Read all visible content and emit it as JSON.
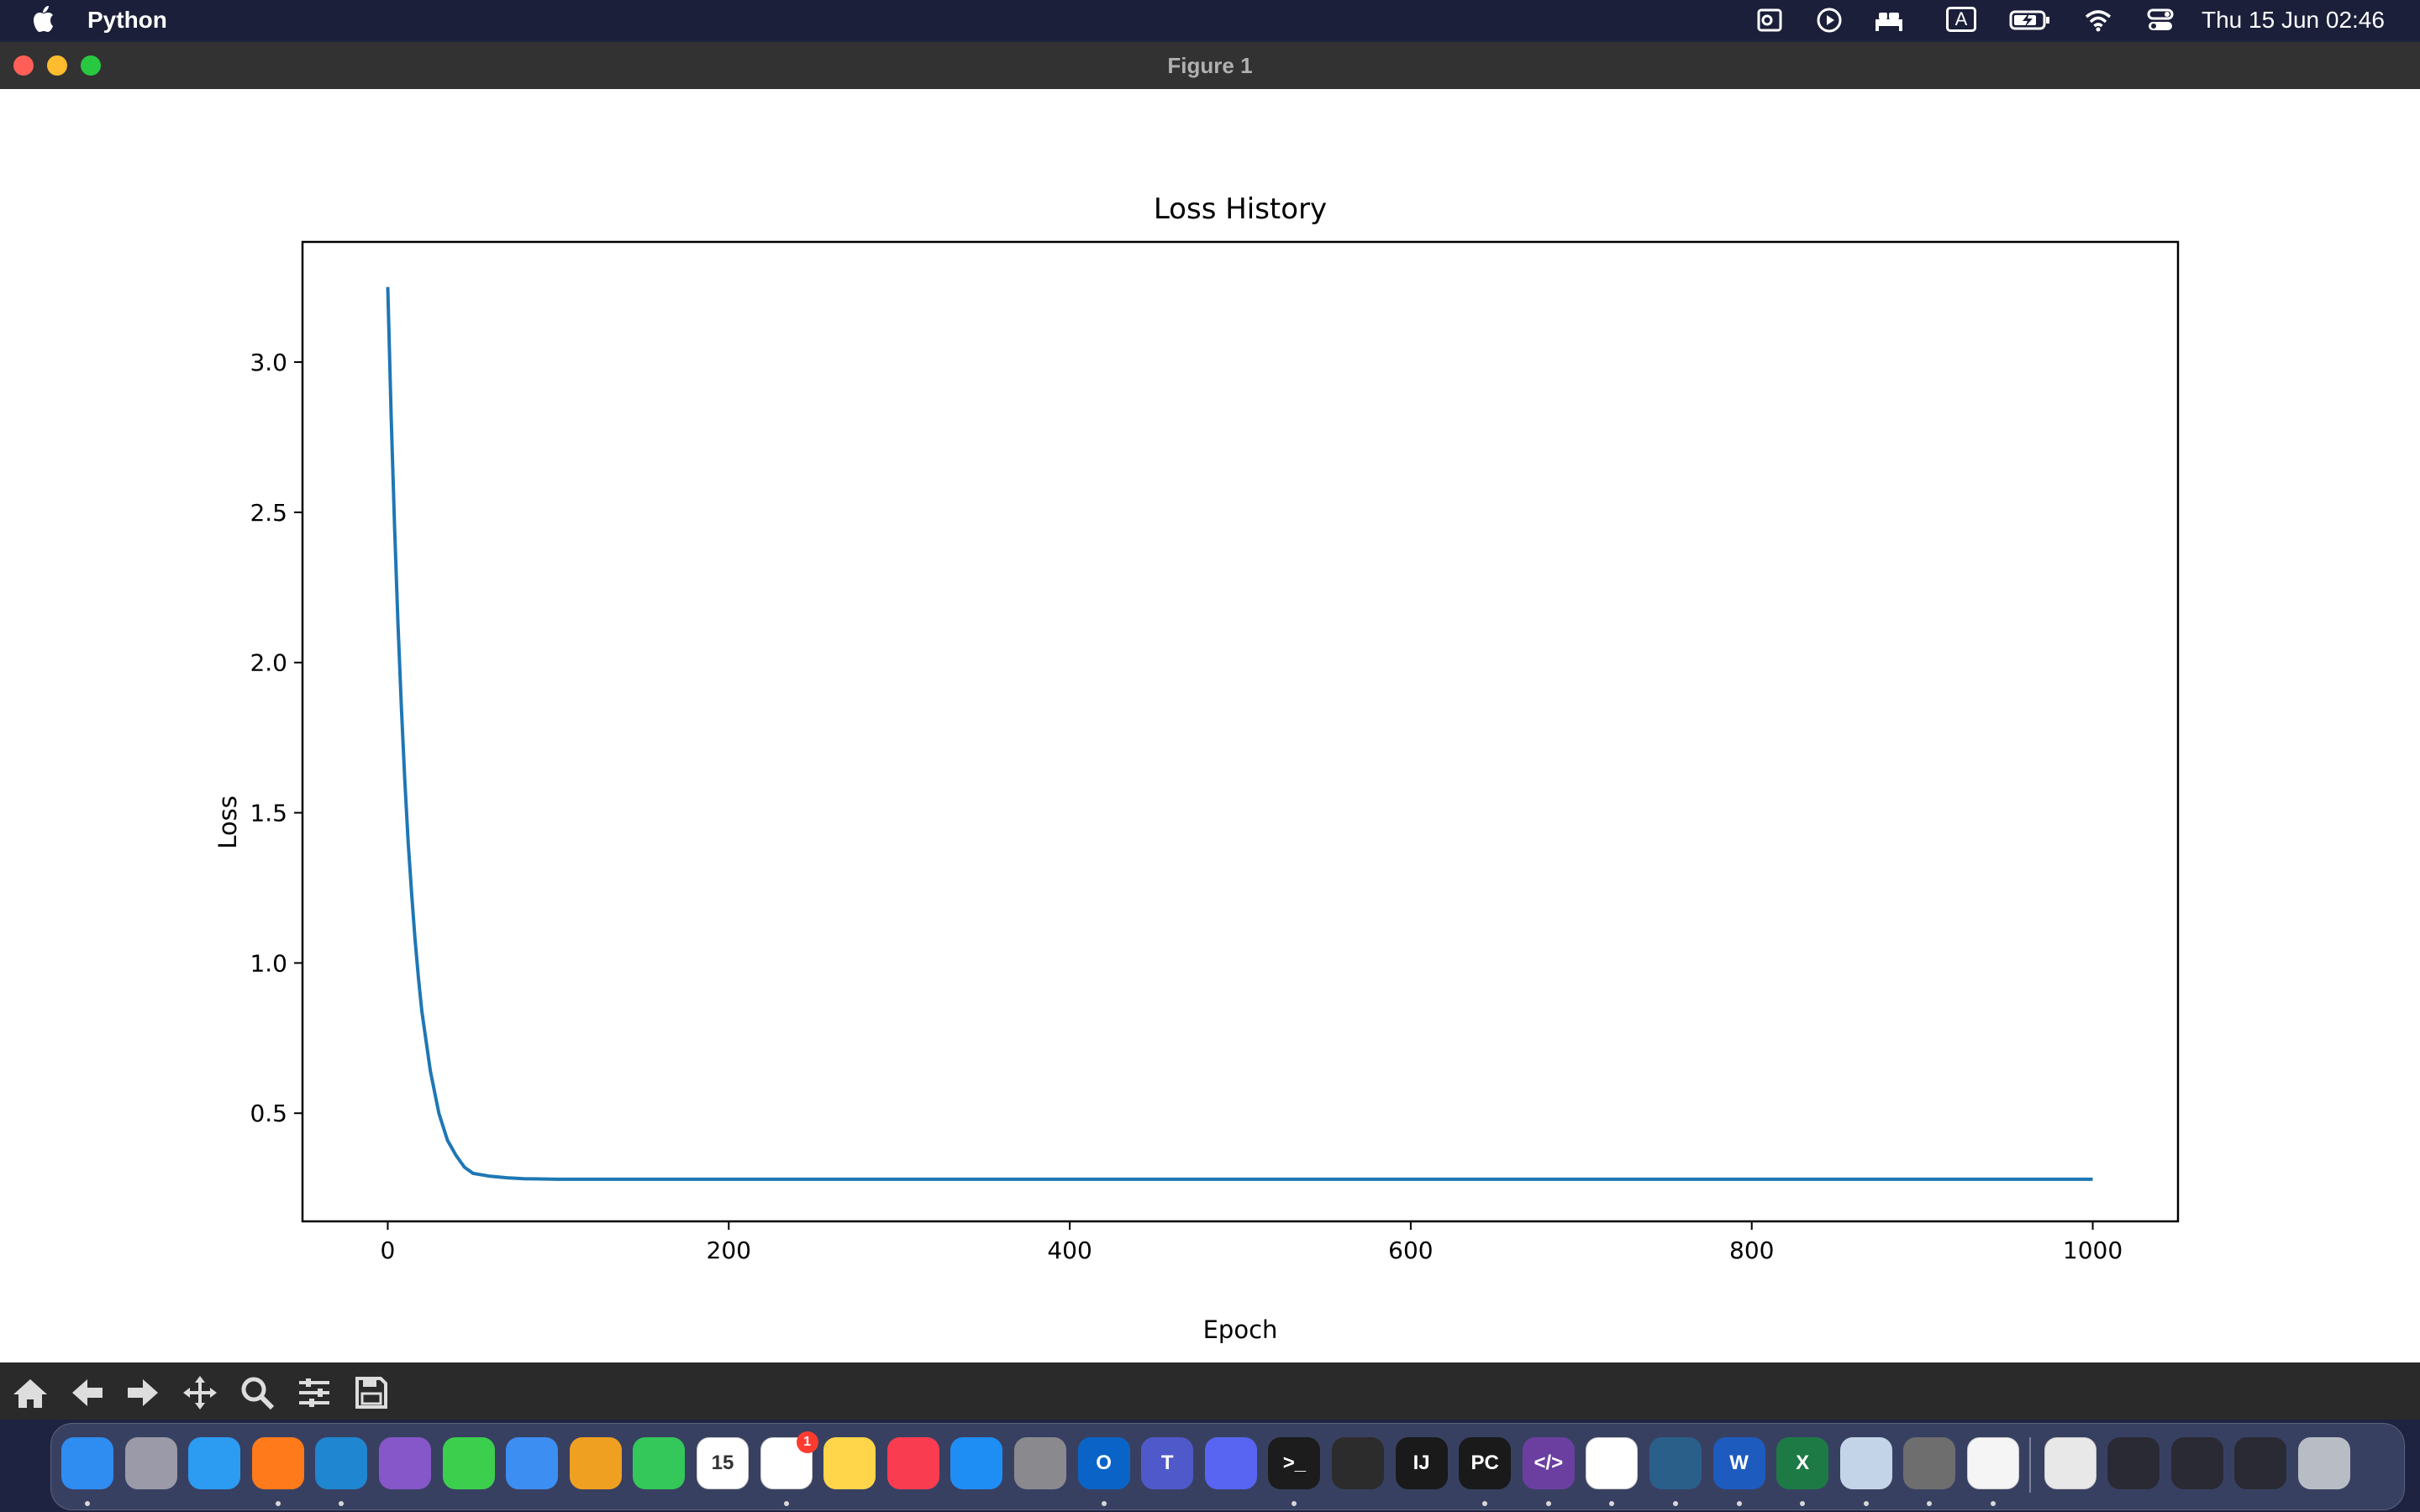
{
  "menubar": {
    "app_name": "Python",
    "clock": "Thu 15 Jun  02:46",
    "status_icons": [
      "outlook-status-icon",
      "play-circle-icon",
      "bed-icon",
      "input-source-a-icon",
      "battery-charging-icon",
      "wifi-icon",
      "control-center-icon"
    ],
    "input_source_label": "A"
  },
  "window": {
    "title": "Figure 1",
    "traffic_lights": {
      "close": "#ff5f57",
      "minimize": "#febc2e",
      "zoom": "#28c840"
    }
  },
  "chart_data": {
    "type": "line",
    "title": "Loss History",
    "xlabel": "Epoch",
    "ylabel": "Loss",
    "xlim": [
      -50,
      1050
    ],
    "ylim": [
      0.14,
      3.4
    ],
    "xticks": [
      0,
      200,
      400,
      600,
      800,
      1000
    ],
    "xtick_labels": [
      "0",
      "200",
      "400",
      "600",
      "800",
      "1000"
    ],
    "yticks": [
      0.5,
      1.0,
      1.5,
      2.0,
      2.5,
      3.0
    ],
    "ytick_labels": [
      "0.5",
      "1.0",
      "1.5",
      "2.0",
      "2.5",
      "3.0"
    ],
    "grid": false,
    "line_color": "#1f77b4",
    "series": [
      {
        "x": [
          0,
          2,
          4,
          6,
          8,
          10,
          12,
          14,
          16,
          18,
          20,
          25,
          30,
          35,
          40,
          45,
          50,
          60,
          70,
          80,
          100,
          150,
          200,
          300,
          400,
          500,
          600,
          700,
          800,
          900,
          1000
        ],
        "y": [
          3.25,
          2.82,
          2.45,
          2.13,
          1.85,
          1.61,
          1.4,
          1.23,
          1.08,
          0.95,
          0.84,
          0.64,
          0.5,
          0.41,
          0.36,
          0.32,
          0.3,
          0.29,
          0.285,
          0.282,
          0.28,
          0.28,
          0.28,
          0.28,
          0.28,
          0.28,
          0.28,
          0.28,
          0.28,
          0.28,
          0.28
        ]
      }
    ]
  },
  "toolbar": {
    "buttons": [
      "home-icon",
      "back-arrow-icon",
      "forward-arrow-icon",
      "pan-move-icon",
      "zoom-magnifier-icon",
      "configure-subplots-icon",
      "save-icon"
    ]
  },
  "dock": {
    "apps": [
      {
        "name": "finder",
        "label": "",
        "color": "#2f8cf0",
        "running": true
      },
      {
        "name": "launchpad",
        "label": "",
        "color": "#9a9aa8",
        "running": false
      },
      {
        "name": "safari",
        "label": "",
        "color": "#2b9cf2",
        "running": false
      },
      {
        "name": "firefox",
        "label": "",
        "color": "#ff7a1a",
        "running": true
      },
      {
        "name": "vscode",
        "label": "",
        "color": "#1f86d1",
        "running": true
      },
      {
        "name": "visual-studio",
        "label": "",
        "color": "#8657c8",
        "running": false
      },
      {
        "name": "messages",
        "label": "",
        "color": "#3ccf4e",
        "running": false
      },
      {
        "name": "mail",
        "label": "",
        "color": "#3d8ef2",
        "running": false
      },
      {
        "name": "photos",
        "label": "",
        "color": "#f0a020",
        "running": false
      },
      {
        "name": "facetime",
        "label": "",
        "color": "#34c759",
        "running": false
      },
      {
        "name": "calendar",
        "label": "15",
        "color": "#ffffff",
        "running": false
      },
      {
        "name": "reminders",
        "label": "",
        "color": "#ffffff",
        "running": true,
        "badge": "1"
      },
      {
        "name": "notes",
        "label": "",
        "color": "#ffd54a",
        "running": false
      },
      {
        "name": "music",
        "label": "",
        "color": "#fa3c50",
        "running": false
      },
      {
        "name": "app-store",
        "label": "",
        "color": "#1e8ef5",
        "running": false
      },
      {
        "name": "system-settings",
        "label": "",
        "color": "#8a8a8e",
        "running": false
      },
      {
        "name": "outlook",
        "label": "O",
        "color": "#0a64c8",
        "running": true
      },
      {
        "name": "teams",
        "label": "T",
        "color": "#5059c9",
        "running": false
      },
      {
        "name": "discord",
        "label": "",
        "color": "#5865f2",
        "running": false
      },
      {
        "name": "terminal",
        "label": ">_",
        "color": "#1c1c1c",
        "running": true
      },
      {
        "name": "activity-monitor",
        "label": "",
        "color": "#2c2c2c",
        "running": false
      },
      {
        "name": "intellij",
        "label": "IJ",
        "color": "#1a1a1a",
        "running": false
      },
      {
        "name": "pycharm",
        "label": "PC",
        "color": "#1a1a1a",
        "running": true
      },
      {
        "name": "devtools",
        "label": "</>",
        "color": "#6b3fa0",
        "running": true
      },
      {
        "name": "slack",
        "label": "",
        "color": "#ffffff",
        "running": true
      },
      {
        "name": "mysql-workbench",
        "label": "",
        "color": "#2a5f8a",
        "running": true
      },
      {
        "name": "word",
        "label": "W",
        "color": "#1d5bbf",
        "running": true
      },
      {
        "name": "excel",
        "label": "X",
        "color": "#1d7a45",
        "running": true
      },
      {
        "name": "preview",
        "label": "",
        "color": "#c4d4e8",
        "running": true
      },
      {
        "name": "calculator",
        "label": "",
        "color": "#6e6e6e",
        "running": true
      },
      {
        "name": "pinwheel",
        "label": "",
        "color": "#f5f5f5",
        "running": true
      },
      {
        "name": "document-python",
        "label": "",
        "color": "#e8e8e8",
        "running": false
      },
      {
        "name": "window-thumbnail-1",
        "label": "",
        "color": "#2a2a34",
        "running": false
      },
      {
        "name": "window-thumbnail-2",
        "label": "",
        "color": "#2a2a34",
        "running": false
      },
      {
        "name": "window-thumbnail-3",
        "label": "",
        "color": "#2a2a34",
        "running": false
      },
      {
        "name": "trash",
        "label": "",
        "color": "#b8bcc4",
        "running": false
      }
    ]
  }
}
